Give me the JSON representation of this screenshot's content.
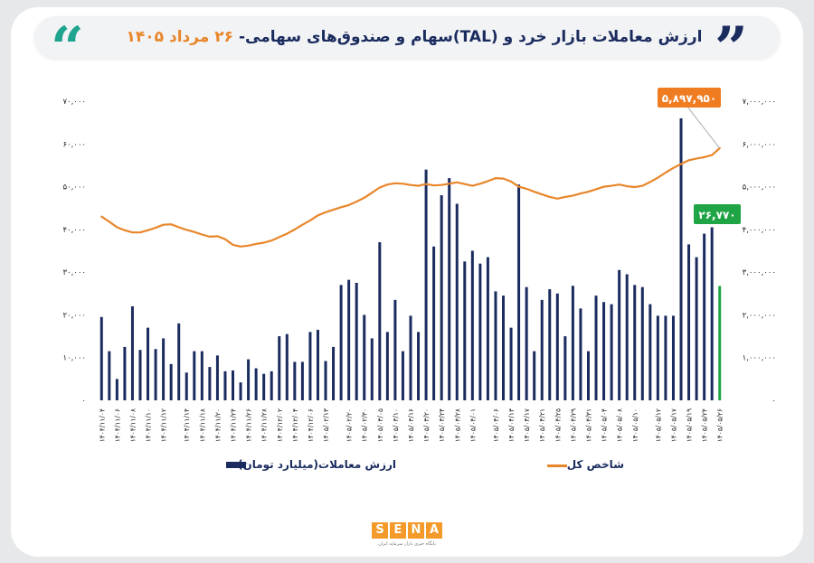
{
  "header": {
    "title_main": "ارزش معاملات بازار خرد و (TAL)سهام و صندوق‌های سهامی-",
    "title_date": "۲۶ مرداد ۱۴۰۵"
  },
  "logo": {
    "letters": [
      "S",
      "E",
      "N",
      "A"
    ],
    "tagline": "پایگاه خبری بازار سرمایه ایران"
  },
  "colors": {
    "bars": "#1a2b5e",
    "last_bar": "#1fa546",
    "line": "#e8862a",
    "callout_line": "#f07c22",
    "callout_bar": "#1fa546"
  },
  "chart_data": {
    "type": "bar",
    "title": "",
    "xlabel": "",
    "ylabel": "",
    "ylim": [
      0,
      70000
    ],
    "y2lim": [
      0,
      7000000
    ],
    "y_ticks": [
      0,
      10000,
      20000,
      30000,
      40000,
      50000,
      60000,
      70000
    ],
    "y_tick_labels": [
      "۰",
      "۱۰,۰۰۰",
      "۲۰,۰۰۰",
      "۳۰,۰۰۰",
      "۴۰,۰۰۰",
      "۵۰,۰۰۰",
      "۶۰,۰۰۰",
      "۷۰,۰۰۰"
    ],
    "y2_ticks": [
      0,
      1000000,
      2000000,
      3000000,
      4000000,
      5000000,
      6000000,
      7000000
    ],
    "y2_tick_labels": [
      "۰",
      "۱,۰۰۰,۰۰۰",
      "۲,۰۰۰,۰۰۰",
      "۳,۰۰۰,۰۰۰",
      "۴,۰۰۰,۰۰۰",
      "۵,۰۰۰,۰۰۰",
      "۶,۰۰۰,۰۰۰",
      "۷,۰۰۰,۰۰۰"
    ],
    "x_tick_labels": [
      "۱۴۰۴/۱۱/۰۴",
      "۱۴۰۴/۱۱/۰۶",
      "۱۴۰۴/۱۱/۰۸",
      "۱۴۰۴/۱۱/۱۰",
      "۱۴۰۴/۱۱/۱۲",
      "۱۴۰۴/۱۱/۱۴",
      "۱۴۰۴/۱۱/۱۸",
      "۱۴۰۴/۱۱/۲۰",
      "۱۴۰۴/۱۱/۲۴",
      "۱۴۰۴/۱۱/۲۶",
      "۱۴۰۴/۱۱/۲۸",
      "۱۴۰۴/۱۲/۰۲",
      "۱۴۰۴/۱۲/۰۴",
      "۱۴۰۴/۱۲/۰۶",
      "۱۴۰۵/۰۲/۱۳",
      "۱۴۰۵/۰۲/۲۰",
      "۱۴۰۵/۰۲/۳۰",
      "۱۴۰۵/۰۳/۰۵",
      "۱۴۰۵/۰۳/۱۰",
      "۱۴۰۵/۰۳/۱۶",
      "۱۴۰۵/۰۳/۲۰",
      "۱۴۰۵/۰۳/۲۴",
      "۱۴۰۵/۰۳/۲۸",
      "۱۴۰۵/۰۴/۰۱",
      "۱۴۰۵/۰۴/۰۶",
      "۱۴۰۵/۰۴/۱۳",
      "۱۴۰۵/۰۴/۱۷",
      "۱۴۰۵/۰۴/۲۱",
      "۱۴۰۵/۰۴/۲۵",
      "۱۴۰۵/۰۴/۲۹",
      "۱۴۰۵/۰۴/۳۱",
      "۱۴۰۵/۰۵/۰۴",
      "۱۴۰۵/۰۵/۰۸",
      "۱۴۰۵/۰۵/۱۰",
      "۱۴۰۵/۰۵/۱۲",
      "۱۴۰۵/۰۵/۱۷",
      "۱۴۰۵/۰۵/۱۹",
      "۱۴۰۵/۰۵/۲۴",
      "۱۴۰۵/۰۵/۲۶"
    ],
    "series": [
      {
        "name": "ارزش معاملات(میلیارد تومان)",
        "type": "bar",
        "axis": "left",
        "values": [
          19500,
          11500,
          5000,
          12500,
          22000,
          11800,
          17000,
          12000,
          14500,
          8500,
          18000,
          6500,
          11500,
          11500,
          7800,
          10500,
          6800,
          7000,
          4200,
          9600,
          7500,
          6200,
          6800,
          15000,
          15500,
          9000,
          9000,
          16000,
          16500,
          9200,
          12500,
          27000,
          28200,
          27500,
          20000,
          14500,
          37000,
          16000,
          23500,
          11500,
          19800,
          16000,
          54000,
          36000,
          48000,
          52000,
          46000,
          32500,
          35000,
          32000,
          33500,
          25500,
          24500,
          17000,
          50500,
          26500,
          11500,
          23500,
          26000,
          25000,
          15000,
          26800,
          21500,
          11500,
          24500,
          23000,
          22500,
          30500,
          29500,
          27000,
          26500,
          22500,
          19800,
          19800,
          19800,
          66000,
          36500,
          33500,
          39000,
          40500,
          26770
        ]
      },
      {
        "name": "شاخص کل",
        "type": "line",
        "axis": "right",
        "values": [
          4300000,
          4180000,
          4050000,
          3980000,
          3930000,
          3930000,
          3980000,
          4040000,
          4110000,
          4120000,
          4050000,
          3990000,
          3940000,
          3880000,
          3830000,
          3840000,
          3770000,
          3640000,
          3600000,
          3620000,
          3660000,
          3690000,
          3740000,
          3820000,
          3900000,
          4000000,
          4110000,
          4210000,
          4330000,
          4400000,
          4460000,
          4520000,
          4570000,
          4650000,
          4740000,
          4860000,
          4980000,
          5050000,
          5080000,
          5070000,
          5040000,
          5020000,
          5060000,
          5030000,
          5040000,
          5070000,
          5100000,
          5060000,
          5020000,
          5070000,
          5130000,
          5200000,
          5190000,
          5120000,
          5000000,
          4950000,
          4880000,
          4820000,
          4760000,
          4720000,
          4760000,
          4790000,
          4840000,
          4880000,
          4940000,
          5000000,
          5020000,
          5050000,
          5010000,
          4990000,
          5020000,
          5110000,
          5210000,
          5330000,
          5440000,
          5530000,
          5620000,
          5660000,
          5690000,
          5740000,
          5897950
        ]
      }
    ],
    "annotations": [
      {
        "target": "line_last",
        "label": "۵,۸۹۷,۹۵۰"
      },
      {
        "target": "bar_last",
        "label": "۲۶,۷۷۰"
      }
    ],
    "legend": [
      {
        "label": "ارزش معاملات(میلیارد تومان)",
        "series": 0
      },
      {
        "label": "شاخص کل",
        "series": 1
      }
    ],
    "legend_position": "bottom",
    "grid": false
  }
}
